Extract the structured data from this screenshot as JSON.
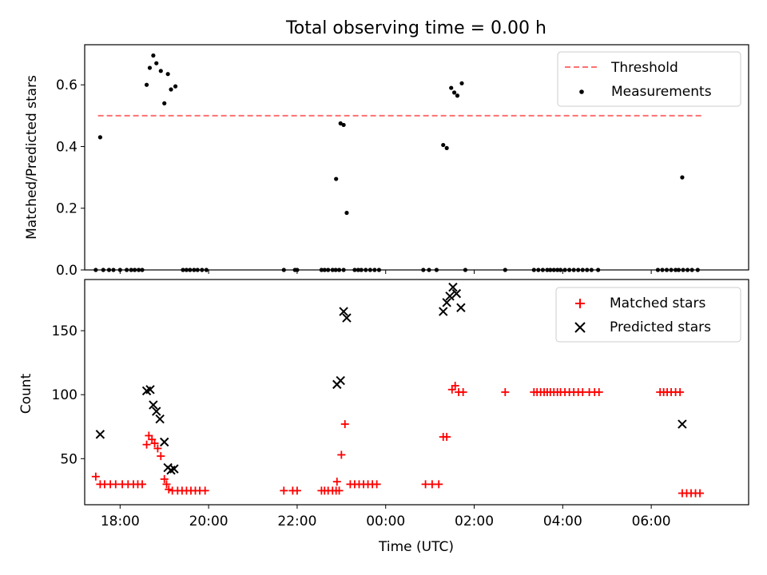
{
  "chart_data": [
    {
      "type": "scatter",
      "title": "Total observing time = 0.00 h",
      "ylabel": "Matched/Predicted stars",
      "xlabel": "",
      "xlim": [
        17.2,
        8.2
      ],
      "xlim_note": "hours UTC; second value wraps past midnight (08:12)",
      "ylim": [
        0,
        0.73
      ],
      "yticks": [
        "0.0",
        "0.2",
        "0.4",
        "0.6"
      ],
      "ytick_values": [
        0.0,
        0.2,
        0.4,
        0.6
      ],
      "grid": false,
      "legend_position": "top-right",
      "threshold": {
        "name": "Threshold",
        "value": 0.5,
        "x_range": [
          17.5,
          7.18
        ],
        "color": "#ff7070"
      },
      "series": [
        {
          "name": "Measurements",
          "color": "#000000",
          "points": [
            [
              17.55,
              0.43
            ],
            [
              17.45,
              0.0
            ],
            [
              17.62,
              0.0
            ],
            [
              17.75,
              0.0
            ],
            [
              17.85,
              0.0
            ],
            [
              18.0,
              0.0
            ],
            [
              18.15,
              0.0
            ],
            [
              18.25,
              0.0
            ],
            [
              18.33,
              0.0
            ],
            [
              18.42,
              0.0
            ],
            [
              18.5,
              0.0
            ],
            [
              18.6,
              0.6
            ],
            [
              18.67,
              0.655
            ],
            [
              18.75,
              0.695
            ],
            [
              18.82,
              0.67
            ],
            [
              18.92,
              0.645
            ],
            [
              19.0,
              0.54
            ],
            [
              19.08,
              0.635
            ],
            [
              19.15,
              0.585
            ],
            [
              19.25,
              0.595
            ],
            [
              19.42,
              0.0
            ],
            [
              19.5,
              0.0
            ],
            [
              19.58,
              0.0
            ],
            [
              19.67,
              0.0
            ],
            [
              19.75,
              0.0
            ],
            [
              19.85,
              0.0
            ],
            [
              19.95,
              0.0
            ],
            [
              21.7,
              0.0
            ],
            [
              21.95,
              0.0
            ],
            [
              22.0,
              0.0
            ],
            [
              22.55,
              0.0
            ],
            [
              22.62,
              0.0
            ],
            [
              22.7,
              0.0
            ],
            [
              22.8,
              0.0
            ],
            [
              22.87,
              0.0
            ],
            [
              22.95,
              0.0
            ],
            [
              23.05,
              0.0
            ],
            [
              22.88,
              0.295
            ],
            [
              22.98,
              0.475
            ],
            [
              23.05,
              0.47
            ],
            [
              23.12,
              0.185
            ],
            [
              23.3,
              0.0
            ],
            [
              23.38,
              0.0
            ],
            [
              23.45,
              0.0
            ],
            [
              23.55,
              0.0
            ],
            [
              23.65,
              0.0
            ],
            [
              23.75,
              0.0
            ],
            [
              23.85,
              0.0
            ],
            [
              24.85,
              0.0
            ],
            [
              24.98,
              0.0
            ],
            [
              25.15,
              0.0
            ],
            [
              25.8,
              0.0
            ],
            [
              25.3,
              0.405
            ],
            [
              25.38,
              0.395
            ],
            [
              25.48,
              0.59
            ],
            [
              25.55,
              0.575
            ],
            [
              25.62,
              0.565
            ],
            [
              25.72,
              0.605
            ],
            [
              26.7,
              0.0
            ],
            [
              27.35,
              0.0
            ],
            [
              27.45,
              0.0
            ],
            [
              27.55,
              0.0
            ],
            [
              27.65,
              0.0
            ],
            [
              27.72,
              0.0
            ],
            [
              27.8,
              0.0
            ],
            [
              27.88,
              0.0
            ],
            [
              27.95,
              0.0
            ],
            [
              28.05,
              0.0
            ],
            [
              28.15,
              0.0
            ],
            [
              28.25,
              0.0
            ],
            [
              28.35,
              0.0
            ],
            [
              28.45,
              0.0
            ],
            [
              28.55,
              0.0
            ],
            [
              28.65,
              0.0
            ],
            [
              28.8,
              0.0
            ],
            [
              30.15,
              0.0
            ],
            [
              30.25,
              0.0
            ],
            [
              30.35,
              0.0
            ],
            [
              30.45,
              0.0
            ],
            [
              30.55,
              0.0
            ],
            [
              30.62,
              0.0
            ],
            [
              30.72,
              0.0
            ],
            [
              30.82,
              0.0
            ],
            [
              30.92,
              0.0
            ],
            [
              31.05,
              0.0
            ],
            [
              30.7,
              0.3
            ]
          ]
        }
      ]
    },
    {
      "type": "scatter",
      "title": "",
      "ylabel": "Count",
      "xlabel": "Time (UTC)",
      "xlim": [
        17.2,
        8.2
      ],
      "xticks": [
        "18:00",
        "20:00",
        "22:00",
        "00:00",
        "02:00",
        "04:00",
        "06:00"
      ],
      "xtick_values": [
        18,
        20,
        22,
        24,
        26,
        28,
        30
      ],
      "ylim": [
        14,
        190
      ],
      "yticks": [
        "50",
        "100",
        "150"
      ],
      "ytick_values": [
        50,
        100,
        150
      ],
      "grid": false,
      "legend_position": "top-right",
      "series": [
        {
          "name": "Matched stars",
          "marker": "plus",
          "color": "#ff0000",
          "points": [
            [
              17.45,
              36
            ],
            [
              17.55,
              30
            ],
            [
              17.65,
              30
            ],
            [
              17.78,
              30
            ],
            [
              17.9,
              30
            ],
            [
              18.05,
              30
            ],
            [
              18.18,
              30
            ],
            [
              18.3,
              30
            ],
            [
              18.4,
              30
            ],
            [
              18.5,
              30
            ],
            [
              18.6,
              61
            ],
            [
              18.65,
              68
            ],
            [
              18.72,
              65
            ],
            [
              18.78,
              62
            ],
            [
              18.85,
              58
            ],
            [
              18.92,
              52
            ],
            [
              19.0,
              34
            ],
            [
              19.05,
              30
            ],
            [
              19.1,
              26
            ],
            [
              19.18,
              25
            ],
            [
              19.3,
              25
            ],
            [
              19.4,
              25
            ],
            [
              19.5,
              25
            ],
            [
              19.6,
              25
            ],
            [
              19.7,
              25
            ],
            [
              19.8,
              25
            ],
            [
              19.92,
              25
            ],
            [
              21.7,
              25
            ],
            [
              21.9,
              25
            ],
            [
              22.0,
              25
            ],
            [
              22.55,
              25
            ],
            [
              22.62,
              25
            ],
            [
              22.7,
              25
            ],
            [
              22.8,
              25
            ],
            [
              22.88,
              25
            ],
            [
              22.95,
              25
            ],
            [
              22.9,
              32
            ],
            [
              23.0,
              53
            ],
            [
              23.08,
              77
            ],
            [
              23.2,
              30
            ],
            [
              23.3,
              30
            ],
            [
              23.4,
              30
            ],
            [
              23.5,
              30
            ],
            [
              23.6,
              30
            ],
            [
              23.7,
              30
            ],
            [
              23.8,
              30
            ],
            [
              24.9,
              30
            ],
            [
              25.05,
              30
            ],
            [
              25.2,
              30
            ],
            [
              25.3,
              67
            ],
            [
              25.38,
              67
            ],
            [
              25.5,
              104
            ],
            [
              25.57,
              107
            ],
            [
              25.65,
              102
            ],
            [
              25.75,
              102
            ],
            [
              26.7,
              102
            ],
            [
              27.35,
              102
            ],
            [
              27.42,
              102
            ],
            [
              27.5,
              102
            ],
            [
              27.58,
              102
            ],
            [
              27.65,
              102
            ],
            [
              27.72,
              102
            ],
            [
              27.8,
              102
            ],
            [
              27.88,
              102
            ],
            [
              27.95,
              102
            ],
            [
              28.05,
              102
            ],
            [
              28.15,
              102
            ],
            [
              28.25,
              102
            ],
            [
              28.35,
              102
            ],
            [
              28.45,
              102
            ],
            [
              28.6,
              102
            ],
            [
              28.72,
              102
            ],
            [
              28.82,
              102
            ],
            [
              30.2,
              102
            ],
            [
              30.28,
              102
            ],
            [
              30.36,
              102
            ],
            [
              30.45,
              102
            ],
            [
              30.55,
              102
            ],
            [
              30.65,
              102
            ],
            [
              30.7,
              23
            ],
            [
              30.8,
              23
            ],
            [
              30.9,
              23
            ],
            [
              31.0,
              23
            ],
            [
              31.1,
              23
            ]
          ]
        },
        {
          "name": "Predicted stars",
          "marker": "x",
          "color": "#000000",
          "points": [
            [
              17.55,
              69
            ],
            [
              18.6,
              103
            ],
            [
              18.68,
              104
            ],
            [
              18.75,
              92
            ],
            [
              18.82,
              87
            ],
            [
              18.9,
              81
            ],
            [
              19.0,
              63
            ],
            [
              19.08,
              43
            ],
            [
              19.15,
              41
            ],
            [
              19.22,
              42
            ],
            [
              22.9,
              108
            ],
            [
              22.98,
              111
            ],
            [
              23.05,
              165
            ],
            [
              23.12,
              160
            ],
            [
              25.3,
              165
            ],
            [
              25.38,
              172
            ],
            [
              25.45,
              177
            ],
            [
              25.52,
              184
            ],
            [
              25.6,
              179
            ],
            [
              25.7,
              168
            ],
            [
              30.7,
              77
            ]
          ]
        }
      ]
    }
  ]
}
